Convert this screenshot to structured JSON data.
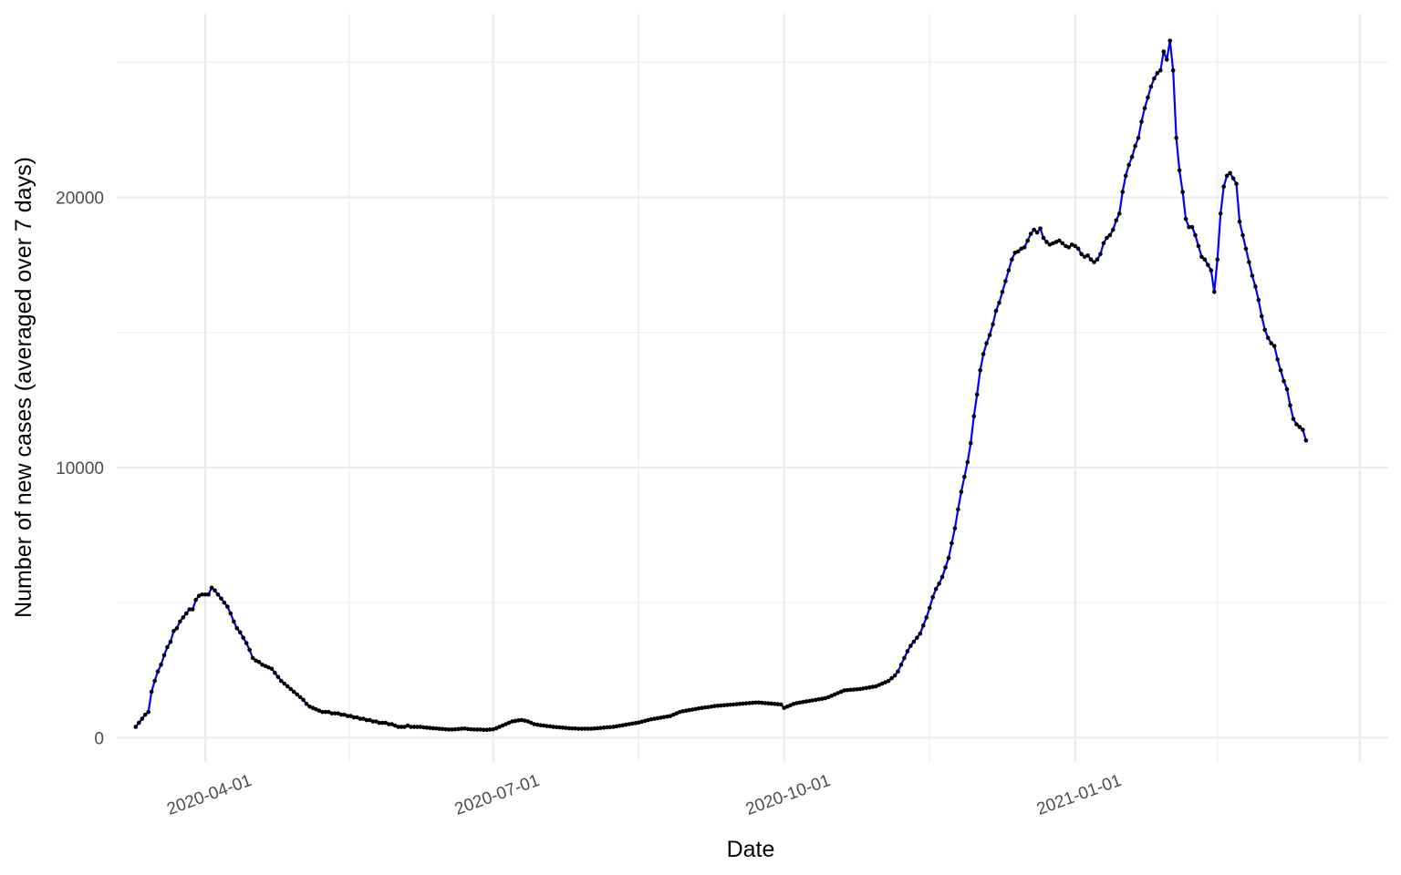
{
  "chart_data": {
    "type": "line",
    "title": "",
    "xlabel": "Date",
    "ylabel": "Number of new cases (averaged over 7 days)",
    "x_start": "2020-03-10",
    "x_end": "2021-02-18",
    "xlim": [
      "2020-03-04",
      "2021-04-10"
    ],
    "ylim": [
      -900,
      26800
    ],
    "x_ticks": [
      "2020-04-01",
      "2020-07-01",
      "2020-10-01",
      "2021-01-01"
    ],
    "y_ticks": [
      0,
      10000,
      20000
    ],
    "grid": true,
    "legend": "none",
    "line_color": "#0000ff",
    "point_color": "#000000",
    "series": [
      {
        "values": [
          400,
          550,
          700,
          850,
          950,
          1700,
          2100,
          2450,
          2700,
          3050,
          3350,
          3550,
          3950,
          4050,
          4300,
          4450,
          4600,
          4750,
          4750,
          5100,
          5250,
          5300,
          5300,
          5300,
          5550,
          5450,
          5300,
          5150,
          5000,
          4850,
          4600,
          4300,
          4050,
          3900,
          3700,
          3500,
          3250,
          2950,
          2850,
          2800,
          2700,
          2650,
          2600,
          2550,
          2400,
          2250,
          2100,
          2000,
          1900,
          1800,
          1700,
          1600,
          1500,
          1400,
          1250,
          1150,
          1100,
          1050,
          1000,
          950,
          950,
          950,
          900,
          900,
          900,
          850,
          850,
          800,
          800,
          750,
          750,
          700,
          700,
          650,
          650,
          600,
          600,
          550,
          550,
          550,
          500,
          500,
          450,
          400,
          400,
          400,
          450,
          400,
          400,
          400,
          400,
          380,
          370,
          360,
          350,
          340,
          330,
          320,
          310,
          300,
          300,
          310,
          320,
          330,
          340,
          320,
          310,
          300,
          300,
          300,
          290,
          290,
          300,
          310,
          350,
          400,
          450,
          500,
          550,
          600,
          620,
          640,
          650,
          630,
          600,
          550,
          500,
          480,
          460,
          450,
          430,
          420,
          400,
          390,
          380,
          370,
          360,
          350,
          340,
          340,
          330,
          330,
          330,
          330,
          330,
          340,
          350,
          360,
          370,
          380,
          390,
          400,
          420,
          440,
          460,
          480,
          500,
          520,
          540,
          560,
          590,
          620,
          650,
          680,
          700,
          720,
          740,
          760,
          780,
          800,
          850,
          900,
          950,
          980,
          1000,
          1020,
          1040,
          1060,
          1080,
          1100,
          1120,
          1130,
          1150,
          1170,
          1180,
          1190,
          1200,
          1210,
          1220,
          1230,
          1240,
          1250,
          1260,
          1270,
          1280,
          1290,
          1300,
          1300,
          1290,
          1280,
          1270,
          1260,
          1250,
          1240,
          1230,
          1100,
          1150,
          1200,
          1250,
          1280,
          1300,
          1320,
          1340,
          1360,
          1380,
          1400,
          1420,
          1440,
          1460,
          1500,
          1550,
          1600,
          1650,
          1700,
          1750,
          1760,
          1770,
          1780,
          1790,
          1800,
          1820,
          1840,
          1860,
          1880,
          1900,
          1950,
          2000,
          2050,
          2100,
          2200,
          2300,
          2450,
          2700,
          2950,
          3200,
          3400,
          3550,
          3700,
          3850,
          4150,
          4450,
          4800,
          5200,
          5500,
          5700,
          5950,
          6300,
          6650,
          7200,
          7750,
          8450,
          9100,
          9650,
          10200,
          10900,
          11900,
          12700,
          13600,
          14200,
          14600,
          14900,
          15300,
          15800,
          16100,
          16500,
          16900,
          17300,
          17700,
          17950,
          18000,
          18100,
          18150,
          18400,
          18650,
          18800,
          18700,
          18850,
          18500,
          18350,
          18250,
          18300,
          18350,
          18400,
          18300,
          18200,
          18150,
          18250,
          18200,
          18100,
          17900,
          17800,
          17850,
          17700,
          17600,
          17700,
          17900,
          18300,
          18500,
          18600,
          18800,
          19150,
          19400,
          20200,
          20800,
          21200,
          21500,
          21900,
          22200,
          22800,
          23300,
          23700,
          24100,
          24400,
          24600,
          24700,
          25400,
          25100,
          25800,
          24700,
          22200,
          21000,
          20200,
          19200,
          18900,
          18900,
          18600,
          18200,
          17800,
          17700,
          17500,
          17300,
          16500,
          17700,
          19400,
          20400,
          20800,
          20900,
          20700,
          20500,
          19100,
          18600,
          18100,
          17600,
          17100,
          16700,
          16200,
          15600,
          15100,
          14800,
          14600,
          14500,
          14000,
          13600,
          13200,
          12900,
          12300,
          11800,
          11600,
          11500,
          11400,
          11000
        ]
      }
    ]
  }
}
